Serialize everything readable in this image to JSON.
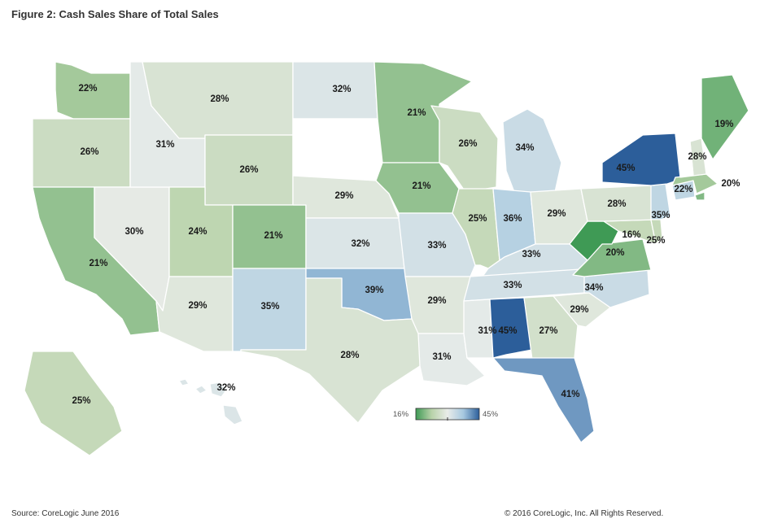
{
  "title": "Figure 2: Cash Sales Share of Total Sales",
  "source": "Source: CoreLogic June 2016",
  "copyright": "© 2016 CoreLogic, Inc. All Rights Reserved.",
  "legend": {
    "min_label": "16%",
    "max_label": "45%",
    "min_value": 16,
    "max_value": 45,
    "colors": [
      "#3f9a55",
      "#b9d3aa",
      "#e9ece9",
      "#a6c8e0",
      "#2c5e9a"
    ]
  },
  "states": [
    {
      "id": "WA",
      "value": 22,
      "label": "22%"
    },
    {
      "id": "OR",
      "value": 26,
      "label": "26%"
    },
    {
      "id": "CA",
      "value": 21,
      "label": "21%"
    },
    {
      "id": "NV",
      "value": 30,
      "label": "30%"
    },
    {
      "id": "ID",
      "value": 31,
      "label": "31%"
    },
    {
      "id": "MT",
      "value": 28,
      "label": "28%"
    },
    {
      "id": "WY",
      "value": 26,
      "label": "26%"
    },
    {
      "id": "UT",
      "value": 24,
      "label": "24%"
    },
    {
      "id": "AZ",
      "value": 29,
      "label": "29%"
    },
    {
      "id": "CO",
      "value": 21,
      "label": "21%"
    },
    {
      "id": "NM",
      "value": 35,
      "label": "35%"
    },
    {
      "id": "ND",
      "value": 32,
      "label": "32%"
    },
    {
      "id": "SD",
      "value": null,
      "label": ""
    },
    {
      "id": "NE",
      "value": 29,
      "label": "29%"
    },
    {
      "id": "KS",
      "value": 32,
      "label": "32%"
    },
    {
      "id": "OK",
      "value": 39,
      "label": "39%"
    },
    {
      "id": "TX",
      "value": 28,
      "label": "28%"
    },
    {
      "id": "MN",
      "value": 21,
      "label": "21%"
    },
    {
      "id": "IA",
      "value": 21,
      "label": "21%"
    },
    {
      "id": "MO",
      "value": 33,
      "label": "33%"
    },
    {
      "id": "AR",
      "value": 29,
      "label": "29%"
    },
    {
      "id": "LA",
      "value": 31,
      "label": "31%"
    },
    {
      "id": "WI",
      "value": 26,
      "label": "26%"
    },
    {
      "id": "IL",
      "value": 25,
      "label": "25%"
    },
    {
      "id": "MI",
      "value": 34,
      "label": "34%"
    },
    {
      "id": "IN",
      "value": 36,
      "label": "36%"
    },
    {
      "id": "OH",
      "value": 29,
      "label": "29%"
    },
    {
      "id": "KY",
      "value": 33,
      "label": "33%"
    },
    {
      "id": "TN",
      "value": 33,
      "label": "33%"
    },
    {
      "id": "MS",
      "value": 31,
      "label": "31%"
    },
    {
      "id": "AL",
      "value": 45,
      "label": "45%"
    },
    {
      "id": "GA",
      "value": 27,
      "label": "27%"
    },
    {
      "id": "FL",
      "value": 41,
      "label": "41%"
    },
    {
      "id": "SC",
      "value": 29,
      "label": "29%"
    },
    {
      "id": "NC",
      "value": 34,
      "label": "34%"
    },
    {
      "id": "VA",
      "value": 20,
      "label": "20%"
    },
    {
      "id": "WV",
      "value": 16,
      "label": "16%"
    },
    {
      "id": "MD",
      "value": 25,
      "label": "25%"
    },
    {
      "id": "PA",
      "value": 28,
      "label": "28%"
    },
    {
      "id": "NJ",
      "value": 35,
      "label": "35%"
    },
    {
      "id": "NY",
      "value": 45,
      "label": "45%"
    },
    {
      "id": "CT",
      "value": 35,
      "label": ""
    },
    {
      "id": "MA",
      "value": 22,
      "label": "22%"
    },
    {
      "id": "RI",
      "value": 20,
      "label": "20%"
    },
    {
      "id": "NH",
      "value": 28,
      "label": "28%"
    },
    {
      "id": "VT",
      "value": null,
      "label": ""
    },
    {
      "id": "ME",
      "value": 19,
      "label": "19%"
    },
    {
      "id": "AK",
      "value": 25,
      "label": "25%"
    },
    {
      "id": "HI",
      "value": 32,
      "label": "32%"
    },
    {
      "id": "DE",
      "value": 25,
      "label": ""
    }
  ]
}
